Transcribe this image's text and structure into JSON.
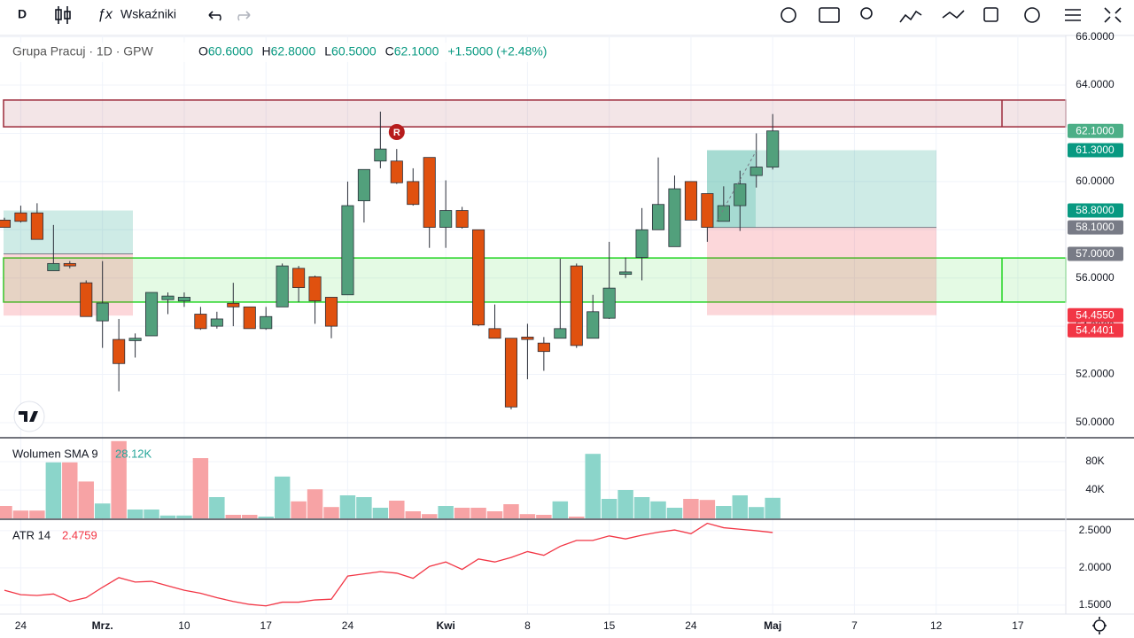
{
  "toolbar": {
    "interval": "D",
    "indicators": "Wskaźniki"
  },
  "header": {
    "symbol": "Grupa Pracuj · 1D · GPW",
    "ohlc": [
      {
        "key": "O",
        "value": "60.6000"
      },
      {
        "key": "H",
        "value": "62.8000"
      },
      {
        "key": "L",
        "value": "60.5000"
      },
      {
        "key": "C",
        "value": "62.1000"
      }
    ],
    "change": "+1.5000 (+2.48%)"
  },
  "chart_data": [
    {
      "type": "candlestick",
      "xlim": [
        -0.27,
        64.93
      ],
      "xticks": [
        {
          "value": 1,
          "label": "24"
        },
        {
          "value": 6,
          "label": "Mrz."
        },
        {
          "value": 11,
          "label": "10"
        },
        {
          "value": 16,
          "label": "17"
        },
        {
          "value": 21,
          "label": "24"
        },
        {
          "value": 27,
          "label": "Kwi"
        },
        {
          "value": 32,
          "label": "8"
        },
        {
          "value": 37,
          "label": "15"
        },
        {
          "value": 42,
          "label": "24"
        },
        {
          "value": 47,
          "label": "Maj"
        },
        {
          "value": 52,
          "label": "7"
        },
        {
          "value": 57,
          "label": "12"
        },
        {
          "value": 62,
          "label": "17"
        }
      ],
      "open": [
        58.4,
        58.7,
        58.7,
        56.3,
        56.6,
        55.8,
        54.22,
        53.45,
        53.4,
        53.6,
        55.1,
        55.05,
        54.5,
        54.0,
        54.95,
        54.8,
        53.9,
        54.8,
        56.4,
        56.05,
        55.2,
        55.3,
        59.2,
        60.85,
        60.85,
        60.0,
        61.0,
        58.1,
        58.8,
        58.0,
        53.9,
        53.5,
        53.55,
        53.3,
        53.5,
        56.5,
        53.5,
        54.33,
        56.15,
        56.85,
        58.0,
        57.3,
        60.0,
        59.5,
        58.35,
        59.0,
        60.25,
        60.6
      ],
      "high": [
        58.5,
        59.0,
        59.1,
        58.2,
        56.7,
        55.9,
        56.7,
        54.3,
        53.7,
        55.4,
        55.4,
        55.4,
        54.8,
        54.6,
        55.8,
        54.8,
        54.8,
        56.6,
        56.5,
        56.1,
        55.2,
        60.0,
        60.5,
        62.9,
        61.35,
        60.55,
        61.0,
        60.05,
        58.95,
        58.0,
        54.9,
        53.5,
        54.1,
        53.55,
        56.8,
        56.6,
        55.3,
        57.5,
        56.85,
        58.9,
        61.0,
        60.25,
        60.0,
        59.5,
        59.8,
        60.45,
        62.0,
        62.8
      ],
      "low": [
        58.1,
        58.3,
        57.6,
        56.3,
        56.4,
        54.4,
        53.1,
        51.3,
        52.7,
        53.6,
        54.5,
        54.8,
        53.85,
        53.9,
        54.0,
        53.9,
        53.85,
        54.8,
        55.0,
        54.1,
        53.5,
        55.3,
        58.3,
        60.55,
        59.9,
        59.0,
        57.25,
        57.25,
        58.05,
        54.0,
        53.5,
        50.55,
        51.8,
        52.15,
        53.5,
        53.1,
        53.5,
        54.3,
        56.0,
        55.9,
        58.0,
        57.3,
        58.4,
        57.5,
        58.35,
        57.95,
        59.75,
        60.5
      ],
      "close": [
        58.1,
        58.35,
        57.6,
        56.6,
        56.5,
        54.4,
        54.96,
        52.45,
        53.5,
        55.4,
        55.25,
        55.2,
        53.9,
        54.3,
        54.8,
        53.9,
        54.4,
        56.5,
        55.6,
        55.05,
        54.0,
        59.0,
        60.5,
        61.35,
        59.95,
        59.05,
        58.1,
        58.8,
        58.1,
        54.05,
        53.5,
        50.65,
        53.45,
        52.95,
        53.9,
        53.2,
        54.6,
        55.58,
        56.25,
        58.0,
        59.05,
        59.7,
        58.4,
        58.1,
        59.0,
        59.9,
        60.6,
        62.1
      ],
      "up_color": "#52a07c",
      "down_color": "#e0510f",
      "ylim": [
        49.41,
        66.06
      ],
      "yticks": [
        {
          "value": 50,
          "label": "50.0000"
        },
        {
          "value": 52,
          "label": "52.0000"
        },
        {
          "value": 54,
          "label": "54.0000"
        },
        {
          "value": 56,
          "label": "56.0000"
        },
        {
          "value": 58,
          "label": "58.0000"
        },
        {
          "value": 60,
          "label": "60.0000"
        },
        {
          "value": 62,
          "label": "62.0000"
        },
        {
          "value": 64,
          "label": "64.0000"
        },
        {
          "value": 66,
          "label": "66.0000"
        }
      ],
      "grid": true,
      "zones": [
        {
          "range": [
            62.27,
            63.38
          ],
          "color": "#9c2a3a"
        },
        {
          "range": [
            55.0,
            56.83
          ],
          "color": "#22d422"
        }
      ],
      "positions": [
        {
          "target": {
            "value": 58.8,
            "label": "58.8000"
          },
          "entry": {
            "value": 57.0,
            "label": "57.0000"
          },
          "stop": {
            "value": 54.4401,
            "label": "54.4401"
          }
        },
        {
          "target": {
            "value": 61.3,
            "label": "61.3000"
          },
          "entry": {
            "value": 58.1,
            "label": "58.1000"
          },
          "stop": {
            "value": 54.455,
            "label": "54.4550"
          }
        }
      ],
      "position_colors": {
        "target": "#089981",
        "entry": "#787b86",
        "stop": "#f23645"
      },
      "last_price": {
        "value": 62.1,
        "label": "62.1000",
        "color": "#4caf87"
      },
      "annotations": [
        "R"
      ]
    },
    {
      "type": "bar",
      "title": "Wolumen SMA 9",
      "value_label": "28.12K",
      "values": [
        17500,
        11000,
        11000,
        79000,
        79000,
        52000,
        21000,
        109000,
        12500,
        12500,
        4000,
        4000,
        85000,
        30000,
        5000,
        5000,
        2500,
        59000,
        24000,
        41000,
        16000,
        32500,
        30000,
        15000,
        25000,
        10000,
        6000,
        17500,
        15000,
        15000,
        10000,
        20000,
        6000,
        5000,
        24000,
        2500,
        91000,
        27500,
        40000,
        30000,
        24000,
        15000,
        27500,
        26000,
        17500,
        32500,
        16000,
        29000
      ],
      "up_color": "#8bd5ca",
      "down_color": "#f7a3a5",
      "ylim": [
        0,
        112500
      ],
      "yticks": [
        {
          "value": 40000,
          "label": "40K"
        },
        {
          "value": 80000,
          "label": "80K"
        }
      ]
    },
    {
      "type": "line",
      "title": "ATR 14",
      "color": "#f23645",
      "values": [
        1.7,
        1.64,
        1.63,
        1.65,
        1.55,
        1.6,
        1.74,
        1.87,
        1.81,
        1.82,
        1.76,
        1.7,
        1.66,
        1.6,
        1.55,
        1.51,
        1.49,
        1.54,
        1.54,
        1.57,
        1.58,
        1.89,
        1.92,
        1.95,
        1.93,
        1.86,
        2.02,
        2.08,
        1.98,
        2.12,
        2.08,
        2.14,
        2.22,
        2.17,
        2.29,
        2.37,
        2.37,
        2.43,
        2.39,
        2.44,
        2.48,
        2.51,
        2.46,
        2.6,
        2.54,
        2.52,
        2.5,
        2.4759
      ],
      "ylim": [
        1.38,
        2.63
      ],
      "yticks": [
        {
          "value": 1.5,
          "label": "1.5000"
        },
        {
          "value": 2.0,
          "label": "2.0000"
        },
        {
          "value": 2.5,
          "label": "2.5000"
        }
      ]
    }
  ]
}
